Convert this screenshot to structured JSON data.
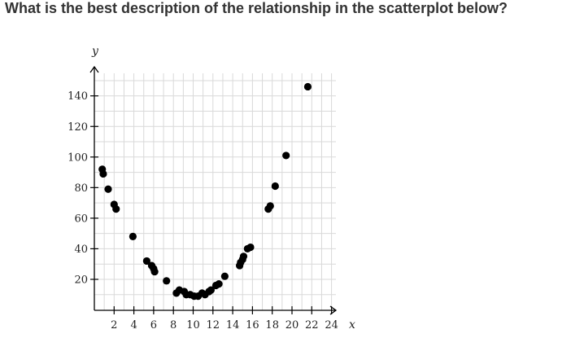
{
  "question": "What is the best description of the relationship in the scatterplot below?",
  "chart_data": {
    "type": "scatter",
    "title": "",
    "xlabel": "x",
    "ylabel": "y",
    "xlim": [
      0,
      24
    ],
    "ylim": [
      0,
      150
    ],
    "xticks": [
      2,
      4,
      6,
      8,
      10,
      12,
      14,
      16,
      18,
      20,
      22,
      24
    ],
    "yticks": [
      20,
      40,
      60,
      80,
      100,
      120,
      140
    ],
    "grid": true,
    "point_color": "#000000",
    "points": [
      [
        0.8,
        92
      ],
      [
        0.9,
        89
      ],
      [
        1.4,
        79
      ],
      [
        2.0,
        69
      ],
      [
        2.2,
        66
      ],
      [
        3.9,
        48
      ],
      [
        5.3,
        32
      ],
      [
        5.8,
        29
      ],
      [
        6.0,
        27
      ],
      [
        6.1,
        25
      ],
      [
        7.3,
        19
      ],
      [
        8.3,
        11
      ],
      [
        8.6,
        13
      ],
      [
        9.1,
        12
      ],
      [
        9.3,
        10
      ],
      [
        9.7,
        10
      ],
      [
        10.1,
        9
      ],
      [
        10.5,
        9
      ],
      [
        10.9,
        11
      ],
      [
        11.2,
        10
      ],
      [
        11.6,
        12
      ],
      [
        11.8,
        13
      ],
      [
        12.3,
        16
      ],
      [
        12.6,
        17
      ],
      [
        13.2,
        22
      ],
      [
        14.7,
        29
      ],
      [
        14.8,
        31
      ],
      [
        15.0,
        33
      ],
      [
        15.1,
        35
      ],
      [
        15.5,
        40
      ],
      [
        15.8,
        41
      ],
      [
        17.6,
        66
      ],
      [
        17.8,
        68
      ],
      [
        18.3,
        81
      ],
      [
        19.4,
        101
      ],
      [
        21.6,
        146
      ]
    ]
  }
}
